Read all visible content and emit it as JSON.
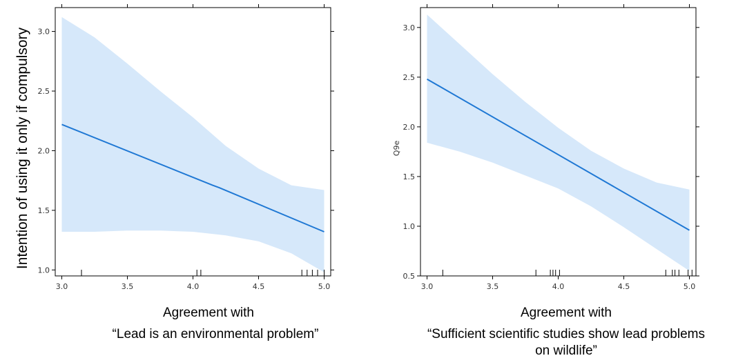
{
  "colors": {
    "line": "#1f78d4",
    "band": "#d6e8fa",
    "frame": "#000000"
  },
  "chart_data": [
    {
      "type": "line",
      "ylabel": "Intention of using it only if compulsory",
      "xlabel_line1": "Agreement with",
      "xlabel_line2": "“Lead is an environmental problem”",
      "xlabel_line3": "",
      "xlim": [
        2.95,
        5.05
      ],
      "ylim": [
        0.95,
        3.2
      ],
      "x_ticks": [
        3.0,
        3.5,
        4.0,
        4.5,
        5.0
      ],
      "x_tick_labels": [
        "3.0",
        "3.5",
        "4.0",
        "4.5",
        "5.0"
      ],
      "y_ticks": [
        1.0,
        1.5,
        2.0,
        2.5,
        3.0
      ],
      "y_tick_labels": [
        "1.0",
        "1.5",
        "2.0",
        "2.5",
        "3.0"
      ],
      "series": [
        {
          "x": [
            3.0,
            4.15,
            4.2,
            5.0
          ],
          "y": [
            2.22,
            1.71,
            1.69,
            1.32
          ]
        }
      ],
      "band": {
        "x": [
          3.0,
          3.25,
          3.5,
          3.75,
          4.0,
          4.25,
          4.5,
          4.75,
          5.0
        ],
        "upper": [
          3.12,
          2.95,
          2.73,
          2.5,
          2.28,
          2.04,
          1.85,
          1.71,
          1.67
        ],
        "lower": [
          1.32,
          1.32,
          1.33,
          1.33,
          1.32,
          1.29,
          1.24,
          1.14,
          0.98
        ]
      },
      "rug": [
        3.15,
        4.03,
        4.06,
        4.83,
        4.87,
        4.91,
        4.95,
        5.0
      ]
    },
    {
      "type": "line",
      "ylabel": "Q9e",
      "xlabel_line1": "Agreement with",
      "xlabel_line2": "“Sufficient scientific studies show lead problems",
      "xlabel_line3": "on wildlife”",
      "xlim": [
        2.95,
        5.05
      ],
      "ylim": [
        0.5,
        3.2
      ],
      "x_ticks": [
        3.0,
        3.5,
        4.0,
        4.5,
        5.0
      ],
      "x_tick_labels": [
        "3.0",
        "3.5",
        "4.0",
        "4.5",
        "5.0"
      ],
      "y_ticks": [
        0.5,
        1.0,
        1.5,
        2.0,
        2.5,
        3.0
      ],
      "y_tick_labels": [
        "0.5",
        "1.0",
        "1.5",
        "2.0",
        "2.5",
        "3.0"
      ],
      "series": [
        {
          "x": [
            3.0,
            5.0
          ],
          "y": [
            2.48,
            0.96
          ]
        }
      ],
      "band": {
        "x": [
          3.0,
          3.25,
          3.5,
          3.75,
          4.0,
          4.25,
          4.5,
          4.75,
          5.0
        ],
        "upper": [
          3.13,
          2.83,
          2.53,
          2.25,
          1.99,
          1.76,
          1.58,
          1.44,
          1.37
        ],
        "lower": [
          1.84,
          1.75,
          1.64,
          1.51,
          1.38,
          1.2,
          0.99,
          0.77,
          0.55
        ]
      },
      "rug": [
        3.12,
        3.83,
        3.94,
        3.96,
        3.98,
        4.01,
        4.82,
        4.87,
        4.89,
        4.92,
        4.99,
        5.02
      ]
    }
  ]
}
